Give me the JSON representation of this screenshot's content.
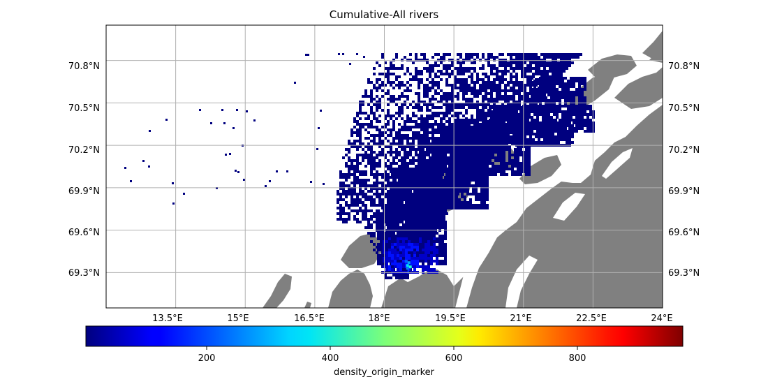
{
  "title": "Cumulative-All rivers",
  "map": {
    "lon_range": [
      12.0,
      24.0
    ],
    "lat_range": [
      69.05,
      71.05
    ],
    "lon_ticks": [
      {
        "value": 13.5,
        "label": "13.5°E"
      },
      {
        "value": 15.0,
        "label": "15°E"
      },
      {
        "value": 16.5,
        "label": "16.5°E"
      },
      {
        "value": 18.0,
        "label": "18°E"
      },
      {
        "value": 19.5,
        "label": "19.5°E"
      },
      {
        "value": 21.0,
        "label": "21°E"
      },
      {
        "value": 22.5,
        "label": "22.5°E"
      },
      {
        "value": 24.0,
        "label": "24°E"
      }
    ],
    "lat_ticks": [
      {
        "value": 69.3,
        "label": "69.3°N"
      },
      {
        "value": 69.6,
        "label": "69.6°N"
      },
      {
        "value": 69.9,
        "label": "69.9°N"
      },
      {
        "value": 70.2,
        "label": "70.2°N"
      },
      {
        "value": 70.5,
        "label": "70.5°N"
      },
      {
        "value": 70.8,
        "label": "70.8°N"
      }
    ],
    "grid": true,
    "land_color": "#808080",
    "ocean_color": "#ffffff",
    "grid_color": "#b0b0b0"
  },
  "colorbar": {
    "label": "density_origin_marker",
    "range": [
      0,
      950
    ],
    "ticks": [
      {
        "value": 200,
        "label": "200"
      },
      {
        "value": 400,
        "label": "400"
      },
      {
        "value": 600,
        "label": "600"
      },
      {
        "value": 800,
        "label": "800"
      }
    ],
    "colormap": "jet",
    "orientation": "horizontal"
  },
  "density_hotspot": {
    "lon": 18.5,
    "lat": 69.35
  }
}
